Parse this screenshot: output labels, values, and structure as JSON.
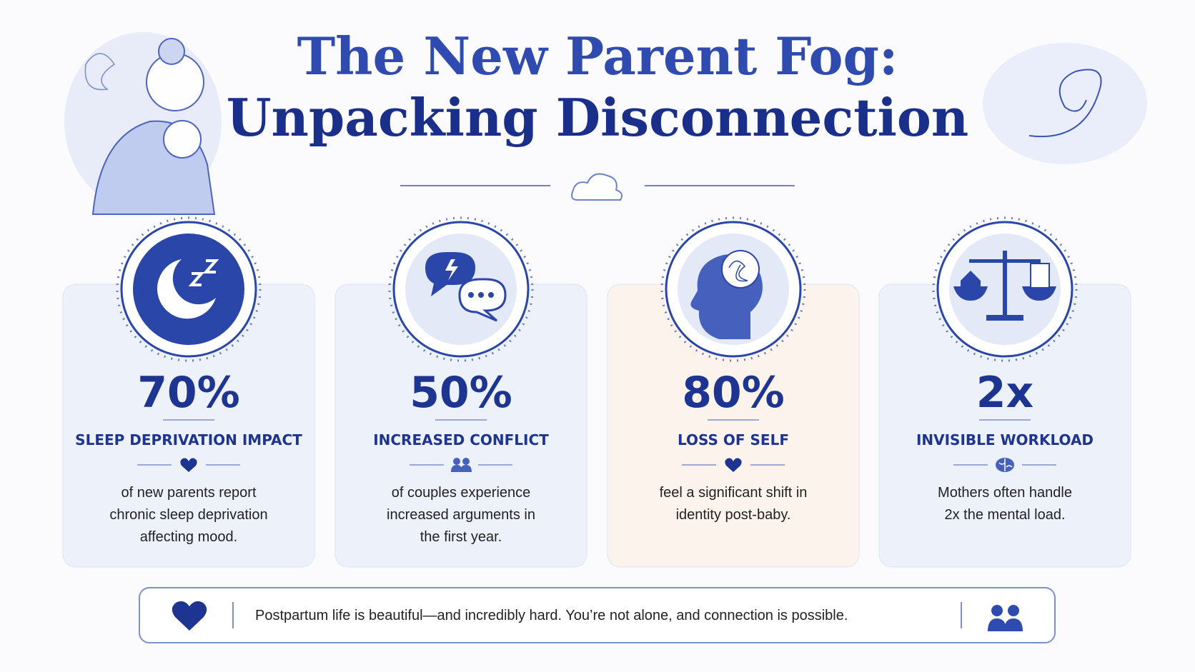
{
  "header": {
    "title_lines": [
      "The New Parent Fog:",
      "Unpacking Disconnection"
    ]
  },
  "cards": [
    {
      "stat": "70%",
      "label": "SLEEP DEPRIVATION IMPACT",
      "description_lines": [
        "of new parents report",
        "chronic sleep deprivation",
        "affecting mood."
      ]
    },
    {
      "stat": "50%",
      "label": "INCREASED CONFLICT",
      "description_lines": [
        "of couples experience",
        "increased arguments in",
        "the first year."
      ]
    },
    {
      "stat": "80%",
      "label": "LOSS OF SELF",
      "description_lines": [
        "feel a significant shift in",
        "identity post-baby."
      ]
    },
    {
      "stat": "2x",
      "label": "INVISIBLE WORKLOAD",
      "description_lines": [
        "Mothers often handle",
        "2x the mental load."
      ]
    }
  ],
  "footer": {
    "text": "Postpartum life is beautiful—and incredibly hard. You’re not alone, and connection is possible."
  }
}
